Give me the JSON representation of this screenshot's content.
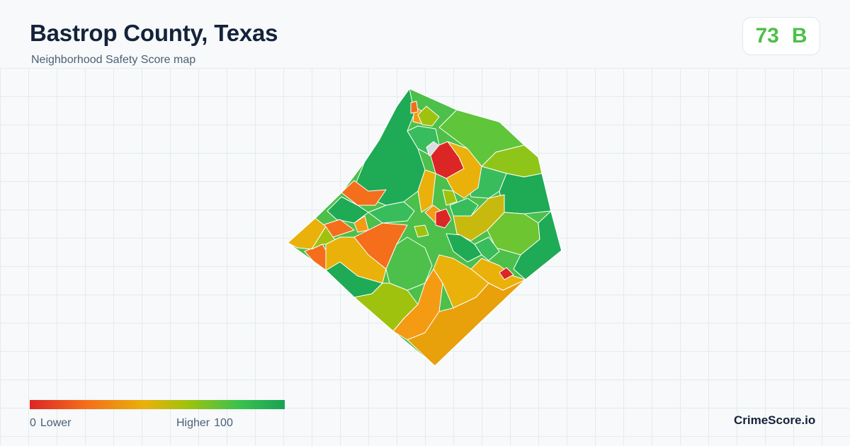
{
  "header": {
    "title": "Bastrop County, Texas",
    "subtitle": "Neighborhood Safety Score map"
  },
  "score": {
    "value": "73",
    "grade": "B",
    "color": "#4cc04a"
  },
  "legend": {
    "min_value": "0",
    "min_label": "Lower",
    "max_label": "Higher",
    "max_value": "100",
    "colors": [
      "#dc2626",
      "#f46e1b",
      "#e9b10a",
      "#9fc20e",
      "#3bc24e",
      "#17a255"
    ]
  },
  "map": {
    "region": "Bastrop County, Texas",
    "no_data_color": "#d7dde2"
  },
  "brand": {
    "name": "CrimeScore.io"
  }
}
